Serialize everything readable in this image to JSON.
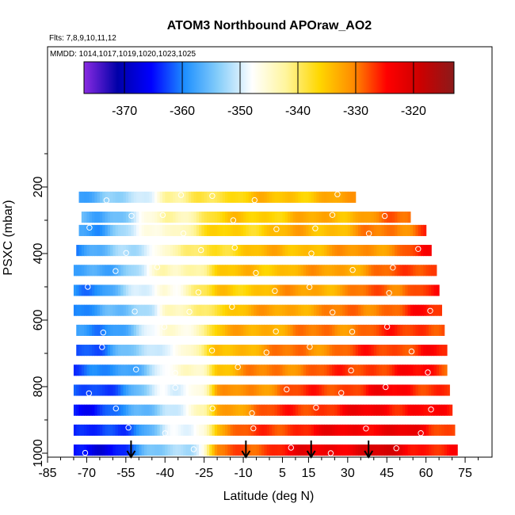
{
  "chart_data": {
    "type": "heatmap",
    "title": "ATOM3 Northbound APOraw_AO2",
    "subtitle_flights": "Flts: 7,8,9,10,11,12",
    "subtitle_dates": "MMDD: 1014,1017,1019,1020,1023,1025",
    "xlabel": "Latitude (deg N)",
    "ylabel": "PSXC (mbar)",
    "x_ticks": [
      -85,
      -70,
      -55,
      -40,
      -25,
      -10,
      5,
      15,
      30,
      45,
      60,
      75
    ],
    "y_ticks": [
      200,
      400,
      600,
      800,
      1000
    ],
    "xlim": [
      -85,
      85
    ],
    "ylim": [
      1000,
      0
    ],
    "colorbar": {
      "ticks": [
        -370,
        -360,
        -350,
        -340,
        -330,
        -320
      ],
      "range": [
        -377,
        -313
      ],
      "colors": [
        "#8a2be2",
        "#0000a8",
        "#0000ff",
        "#1e90ff",
        "#87cefa",
        "#ffffff",
        "#fff59d",
        "#ffd700",
        "#ff8c00",
        "#ff0000",
        "#cc0000",
        "#8b1a1a"
      ]
    },
    "arrow_latitudes": [
      -53,
      -9,
      16,
      38
    ],
    "pressure_levels": [
      230,
      290,
      330,
      390,
      450,
      510,
      570,
      630,
      690,
      750,
      810,
      870,
      930,
      990
    ],
    "level_extent": [
      [
        -73,
        33
      ],
      [
        -72,
        54
      ],
      [
        -73,
        60
      ],
      [
        -74,
        62
      ],
      [
        -75,
        64
      ],
      [
        -75,
        65
      ],
      [
        -75,
        66
      ],
      [
        -74,
        67
      ],
      [
        -74,
        68
      ],
      [
        -75,
        68
      ],
      [
        -75,
        69
      ],
      [
        -75,
        70
      ],
      [
        -75,
        71
      ],
      [
        -75,
        72
      ]
    ],
    "field_profile": {
      "latitudes": [
        -75,
        -65,
        -55,
        -45,
        -40,
        -35,
        -30,
        -25,
        -20,
        -10,
        0,
        10,
        20,
        30,
        40,
        50,
        60,
        72
      ],
      "upper_troposphere": [
        -358,
        -357,
        -352,
        -347,
        -343,
        -344,
        -341,
        -339,
        -337,
        -336,
        -335,
        -334,
        -334,
        -333,
        -331,
        -330,
        -326,
        -328
      ],
      "boundary_layer": [
        -366,
        -366,
        -363,
        -356,
        -353,
        -351,
        -350,
        -347,
        -331,
        -328,
        -326,
        -324,
        -323,
        -322,
        -321,
        -322,
        -325,
        -327
      ]
    }
  }
}
